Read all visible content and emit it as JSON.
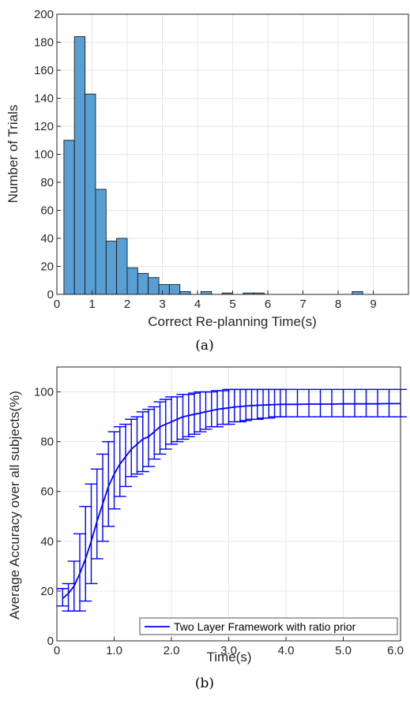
{
  "chart_data": [
    {
      "type": "bar",
      "caption": "(a)",
      "xlabel": "Correct Re-planning Time(s)",
      "ylabel": "Number of Trials",
      "xlim": [
        0,
        10
      ],
      "ylim": [
        0,
        200
      ],
      "bin_width": 0.3,
      "x_ticks": [
        0,
        1,
        2,
        3,
        4,
        5,
        6,
        7,
        8,
        9
      ],
      "y_ticks": [
        0,
        20,
        40,
        60,
        80,
        100,
        120,
        140,
        160,
        180,
        200
      ],
      "grid": true,
      "color": "#5a9fd4",
      "bins": [
        {
          "x0": 0.2,
          "x1": 0.5,
          "count": 110
        },
        {
          "x0": 0.5,
          "x1": 0.8,
          "count": 184
        },
        {
          "x0": 0.8,
          "x1": 1.1,
          "count": 143
        },
        {
          "x0": 1.1,
          "x1": 1.4,
          "count": 75
        },
        {
          "x0": 1.4,
          "x1": 1.7,
          "count": 38
        },
        {
          "x0": 1.7,
          "x1": 2.0,
          "count": 40
        },
        {
          "x0": 2.0,
          "x1": 2.3,
          "count": 19
        },
        {
          "x0": 2.3,
          "x1": 2.6,
          "count": 15
        },
        {
          "x0": 2.6,
          "x1": 2.9,
          "count": 12
        },
        {
          "x0": 2.9,
          "x1": 3.2,
          "count": 7
        },
        {
          "x0": 3.2,
          "x1": 3.5,
          "count": 7
        },
        {
          "x0": 3.5,
          "x1": 3.8,
          "count": 2
        },
        {
          "x0": 3.8,
          "x1": 4.1,
          "count": 0
        },
        {
          "x0": 4.1,
          "x1": 4.4,
          "count": 2
        },
        {
          "x0": 4.4,
          "x1": 4.7,
          "count": 0
        },
        {
          "x0": 4.7,
          "x1": 5.0,
          "count": 1
        },
        {
          "x0": 5.0,
          "x1": 5.3,
          "count": 0
        },
        {
          "x0": 5.3,
          "x1": 5.6,
          "count": 1
        },
        {
          "x0": 5.6,
          "x1": 5.9,
          "count": 1
        },
        {
          "x0": 8.4,
          "x1": 8.7,
          "count": 2
        }
      ]
    },
    {
      "type": "line",
      "caption": "(b)",
      "xlabel": "Time(s)",
      "ylabel": "Average Accuracy over all subjects(%)",
      "xlim": [
        0,
        6
      ],
      "ylim": [
        0,
        110
      ],
      "x_ticks": [
        0,
        1.0,
        2.0,
        3.0,
        4.0,
        5.0,
        6.0
      ],
      "x_tick_labels": [
        "0",
        "1.0",
        "2.0",
        "3.0",
        "4.0",
        "5.0",
        "6.0"
      ],
      "y_ticks": [
        0,
        20,
        40,
        60,
        80,
        100
      ],
      "grid": true,
      "legend": {
        "position": "bottom-right",
        "entries": [
          "Two Layer Framework with ratio prior"
        ]
      },
      "series": [
        {
          "name": "Two Layer Framework with ratio prior",
          "color": "#0000ff",
          "x": [
            0.1,
            0.2,
            0.3,
            0.4,
            0.5,
            0.6,
            0.7,
            0.8,
            0.9,
            1.0,
            1.1,
            1.2,
            1.3,
            1.4,
            1.5,
            1.6,
            1.7,
            1.8,
            1.9,
            2.0,
            2.1,
            2.2,
            2.3,
            2.4,
            2.5,
            2.6,
            2.7,
            2.8,
            2.9,
            3.0,
            3.1,
            3.2,
            3.3,
            3.4,
            3.5,
            3.6,
            3.7,
            3.8,
            3.9,
            4.0,
            4.2,
            4.4,
            4.6,
            4.8,
            5.0,
            5.2,
            5.4,
            5.6,
            5.8,
            6.0
          ],
          "y": [
            17,
            19,
            22,
            27,
            33,
            40,
            48,
            55,
            62,
            67,
            71,
            74,
            77,
            79,
            81,
            82,
            84,
            86,
            87,
            88,
            89,
            90,
            90.5,
            91,
            91.5,
            92,
            92.5,
            93,
            93.3,
            93.6,
            93.9,
            94.1,
            94.3,
            94.5,
            94.6,
            94.7,
            94.8,
            94.9,
            95,
            95,
            95,
            95.1,
            95.1,
            95.1,
            95.2,
            95.2,
            95.2,
            95.2,
            95.3,
            95.3
          ],
          "err_low": [
            14,
            12,
            12,
            12,
            16,
            23,
            33,
            40,
            46,
            53,
            58,
            62,
            66,
            67,
            68,
            70,
            73,
            75,
            77,
            79,
            80,
            81,
            82,
            83,
            84,
            85,
            86,
            86,
            87,
            87,
            88,
            88,
            88.5,
            89,
            89,
            89.5,
            89.5,
            90,
            90,
            90,
            90,
            90,
            90,
            90,
            90,
            90,
            90,
            90,
            90,
            90
          ],
          "err_high": [
            21,
            23,
            32,
            43,
            54,
            63,
            69,
            75,
            80,
            84,
            86,
            87,
            89,
            90,
            92,
            93,
            94,
            96,
            97,
            98,
            98,
            99,
            99,
            99.5,
            100,
            100,
            100,
            100.5,
            100.5,
            101,
            101,
            101,
            101,
            101,
            101,
            101,
            101,
            101,
            101,
            101,
            101,
            101,
            101,
            101,
            101,
            101,
            101,
            101,
            101,
            101
          ]
        }
      ]
    }
  ]
}
